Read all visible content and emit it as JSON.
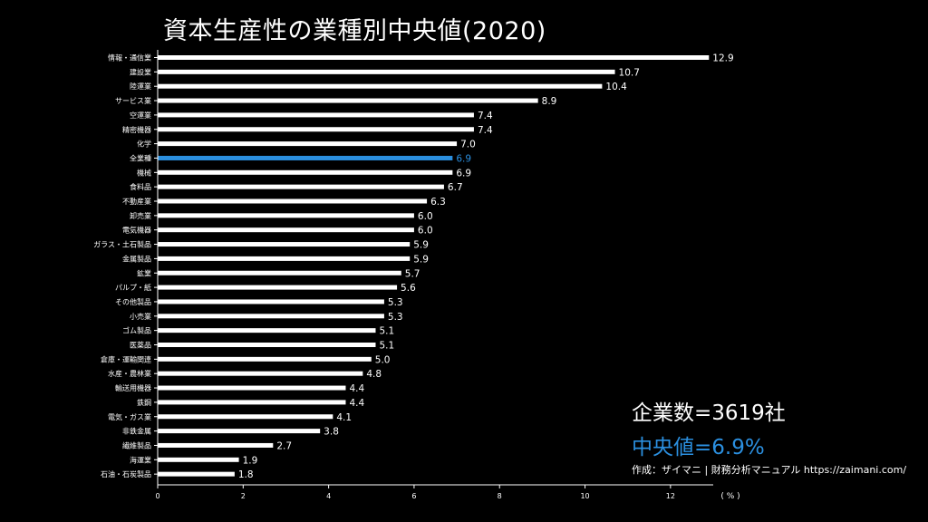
{
  "colors": {
    "background": "#000000",
    "bar": "#ffffff",
    "highlight": "#2b8fdf",
    "text": "#ffffff"
  },
  "stats": {
    "company_count": "企業数=3619社",
    "median": "中央値=6.9%"
  },
  "credit": "作成：ザイマニ | 財務分析マニュアル https://zaimani.com/",
  "chart_data": {
    "type": "bar",
    "orientation": "horizontal",
    "title": "資本生産性の業種別中央値(2020)",
    "xlabel": "( % )",
    "ylabel": "",
    "xlim": [
      0,
      13
    ],
    "xticks": [
      0,
      2,
      4,
      6,
      8,
      10,
      12
    ],
    "highlight_category": "全業種",
    "categories": [
      "情報・通信業",
      "建設業",
      "陸運業",
      "サービス業",
      "空運業",
      "精密機器",
      "化学",
      "全業種",
      "機械",
      "食料品",
      "不動産業",
      "卸売業",
      "電気機器",
      "ガラス・土石製品",
      "金属製品",
      "鉱業",
      "パルプ・紙",
      "その他製品",
      "小売業",
      "ゴム製品",
      "医薬品",
      "倉庫・運輸関連",
      "水産・農林業",
      "輸送用機器",
      "鉄鋼",
      "電気・ガス業",
      "非鉄金属",
      "繊維製品",
      "海運業",
      "石油・石炭製品"
    ],
    "values": [
      12.9,
      10.7,
      10.4,
      8.9,
      7.4,
      7.4,
      7.0,
      6.9,
      6.9,
      6.7,
      6.3,
      6.0,
      6.0,
      5.9,
      5.9,
      5.7,
      5.6,
      5.3,
      5.3,
      5.1,
      5.1,
      5.0,
      4.8,
      4.4,
      4.4,
      4.1,
      3.8,
      2.7,
      1.9,
      1.8
    ],
    "value_labels": [
      "12.9",
      "10.7",
      "10.4",
      "8.9",
      "7.4",
      "7.4",
      "7.0",
      "6.9",
      "6.9",
      "6.7",
      "6.3",
      "6.0",
      "6.0",
      "5.9",
      "5.9",
      "5.7",
      "5.6",
      "5.3",
      "5.3",
      "5.1",
      "5.1",
      "5.0",
      "4.8",
      "4.4",
      "4.4",
      "4.1",
      "3.8",
      "2.7",
      "1.9",
      "1.8"
    ],
    "grid": false,
    "legend": "none"
  }
}
